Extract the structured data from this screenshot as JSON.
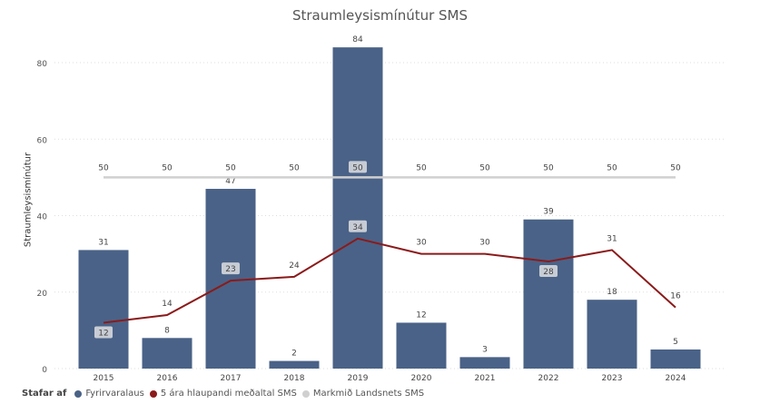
{
  "chart_data": {
    "type": "bar",
    "title": "Straumleysismínútur SMS",
    "xlabel": "",
    "ylabel": "Straumleysismínútur",
    "ylim": [
      0,
      84
    ],
    "yticks": [
      0,
      20,
      40,
      60,
      80
    ],
    "grid": true,
    "legend_position": "bottom-left",
    "legend_title": "Stafar af",
    "categories": [
      "2015",
      "2016",
      "2017",
      "2018",
      "2019",
      "2020",
      "2021",
      "2022",
      "2023",
      "2024"
    ],
    "series": [
      {
        "name": "Fyrirvaralaus",
        "type": "bar",
        "color": "#4a6287",
        "values": [
          31,
          8,
          47,
          2,
          84,
          12,
          3,
          39,
          18,
          5
        ]
      },
      {
        "name": "5 ára hlaupandi meðaltal SMS",
        "type": "line",
        "color": "#8b1a1a",
        "values": [
          12,
          14,
          23,
          24,
          34,
          30,
          30,
          28,
          31,
          16
        ]
      },
      {
        "name": "Markmið Landsnets SMS",
        "type": "line",
        "color": "#d0d0d0",
        "values": [
          50,
          50,
          50,
          50,
          50,
          50,
          50,
          50,
          50,
          50
        ]
      }
    ]
  }
}
